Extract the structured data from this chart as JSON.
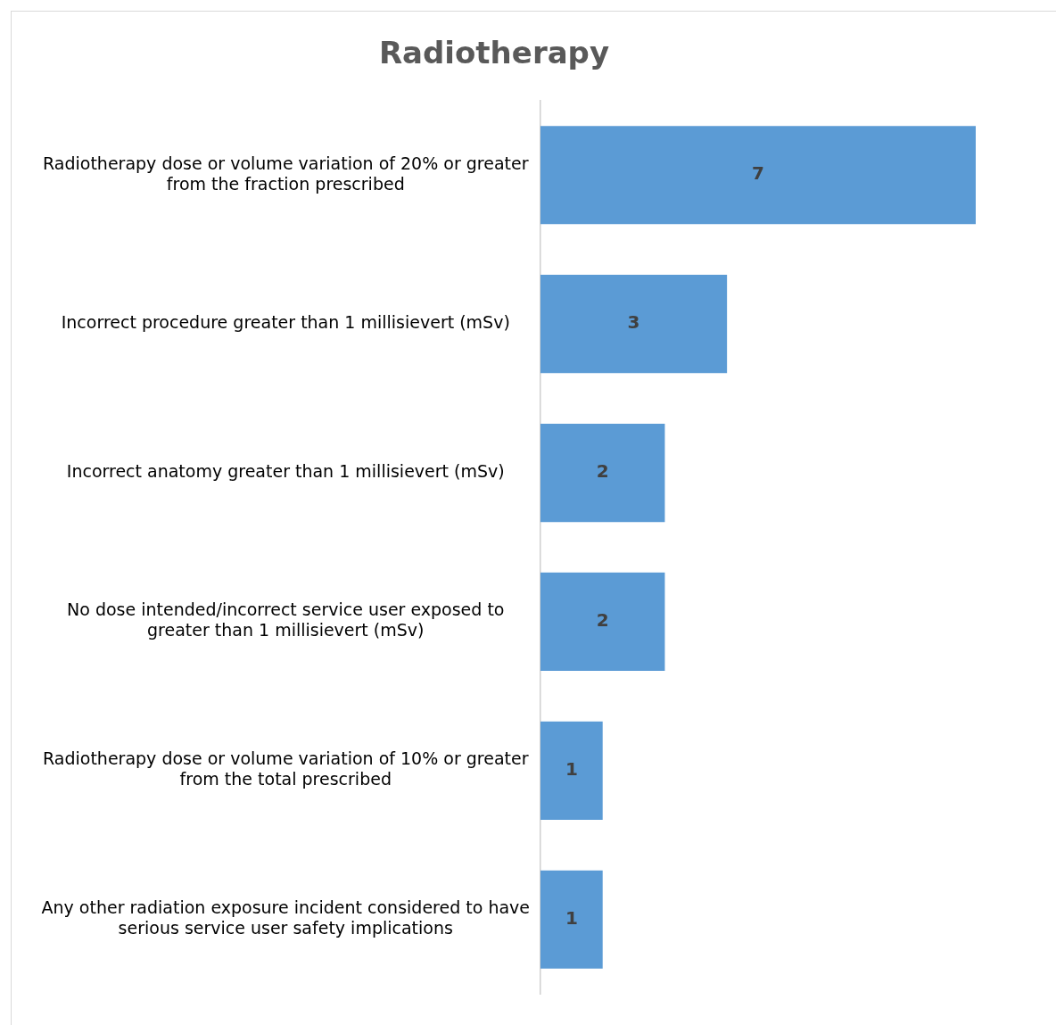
{
  "chart_data": {
    "type": "bar",
    "orientation": "horizontal",
    "title": "Radiotherapy",
    "categories": [
      "Radiotherapy dose or volume variation of 20% or greater from the fraction prescribed",
      "Incorrect procedure greater than 1 millisievert (mSv)",
      "Incorrect anatomy greater than 1 millisievert (mSv)",
      "No dose intended/incorrect service user exposed to greater than 1 millisievert (mSv)",
      "Radiotherapy dose or volume variation of 10% or greater from the total prescribed",
      "Any other radiation exposure incident considered to have serious service user safety implications"
    ],
    "values": [
      7,
      3,
      2,
      2,
      1,
      1
    ],
    "color": "#5b9bd5",
    "data_labels": true,
    "grid": false,
    "legend": false,
    "tick_labels": "y"
  }
}
